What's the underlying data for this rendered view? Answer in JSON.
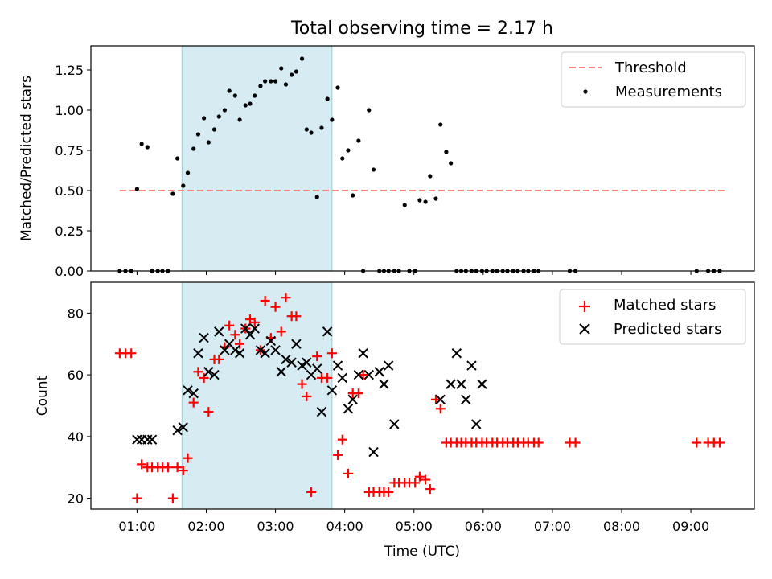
{
  "chart_data": [
    {
      "type": "scatter",
      "title": "Total observing time = 2.17 h",
      "xlabel": "",
      "ylabel": "Matched/Predicted stars",
      "ylim": [
        0,
        1.4
      ],
      "yticks": [
        "0.00",
        "0.25",
        "0.50",
        "0.75",
        "1.00",
        "1.25"
      ],
      "xlim": [
        "00:20",
        "09:55"
      ],
      "legend_position": "top-right",
      "highlight_span": {
        "x": [
          "01:39",
          "03:49"
        ],
        "color": "#add8e6"
      },
      "threshold": {
        "name": "Threshold",
        "value": 0.5,
        "x": [
          "00:45",
          "09:30"
        ],
        "color": "#ff7f7f",
        "style": "dashed"
      },
      "series": [
        {
          "name": "Measurements",
          "color": "#000000",
          "marker": "dot",
          "x": [
            "00:45",
            "00:50",
            "00:55",
            "01:00",
            "01:04",
            "01:09",
            "01:13",
            "01:18",
            "01:22",
            "01:27",
            "01:31",
            "01:35",
            "01:40",
            "01:44",
            "01:49",
            "01:53",
            "01:58",
            "02:02",
            "02:07",
            "02:11",
            "02:16",
            "02:20",
            "02:25",
            "02:29",
            "02:34",
            "02:38",
            "02:42",
            "02:47",
            "02:51",
            "02:56",
            "03:00",
            "03:05",
            "03:09",
            "03:14",
            "03:18",
            "03:23",
            "03:27",
            "03:31",
            "03:36",
            "03:40",
            "03:45",
            "03:49",
            "03:54",
            "03:58",
            "04:03",
            "04:07",
            "04:12",
            "04:16",
            "04:21",
            "04:25",
            "04:30",
            "04:34",
            "04:38",
            "04:43",
            "04:47",
            "04:52",
            "04:56",
            "05:01",
            "05:05",
            "05:10",
            "05:14",
            "05:19",
            "05:23",
            "05:28",
            "05:32",
            "05:37",
            "05:41",
            "05:45",
            "05:50",
            "05:54",
            "05:59",
            "06:03",
            "06:08",
            "06:12",
            "06:17",
            "06:21",
            "06:26",
            "06:30",
            "06:35",
            "06:39",
            "06:44",
            "06:48",
            "07:15",
            "07:20",
            "09:05",
            "09:15",
            "09:20",
            "09:25"
          ],
          "values": [
            0,
            0,
            0,
            0.51,
            0.79,
            0.77,
            0,
            0,
            0,
            0,
            0.48,
            0.7,
            0.53,
            0.61,
            0.76,
            0.85,
            0.95,
            0.8,
            0.88,
            0.96,
            1.0,
            1.12,
            1.09,
            0.94,
            1.03,
            1.04,
            1.09,
            1.15,
            1.18,
            1.18,
            1.18,
            1.26,
            1.16,
            1.22,
            1.24,
            1.32,
            0.88,
            0.86,
            0.46,
            0.89,
            1.07,
            0.94,
            1.14,
            0.7,
            0.75,
            0.47,
            0.81,
            0,
            1.0,
            0.63,
            0,
            0,
            0,
            0,
            0,
            0.41,
            0,
            0,
            0.44,
            0.43,
            0.59,
            0.45,
            0.91,
            0.74,
            0.67,
            0,
            0,
            0,
            0,
            0,
            0,
            0,
            0,
            0,
            0,
            0,
            0,
            0,
            0,
            0,
            0,
            0,
            0,
            0,
            0,
            0,
            0,
            0
          ]
        }
      ]
    },
    {
      "type": "scatter",
      "title": "",
      "xlabel": "Time (UTC)",
      "ylabel": "Count",
      "ylim": [
        16.5,
        90
      ],
      "yticks": [
        "20",
        "40",
        "60",
        "80"
      ],
      "xlim": [
        "00:20",
        "09:55"
      ],
      "xticks": [
        "01:00",
        "02:00",
        "03:00",
        "04:00",
        "05:00",
        "06:00",
        "07:00",
        "08:00",
        "09:00"
      ],
      "legend_position": "top-right",
      "highlight_span": {
        "x": [
          "01:39",
          "03:49"
        ],
        "color": "#add8e6"
      },
      "series": [
        {
          "name": "Matched stars",
          "color": "#ff0000",
          "marker": "plus",
          "x": [
            "00:45",
            "00:50",
            "00:55",
            "01:00",
            "01:04",
            "01:09",
            "01:13",
            "01:18",
            "01:22",
            "01:27",
            "01:31",
            "01:35",
            "01:40",
            "01:44",
            "01:49",
            "01:53",
            "01:58",
            "02:02",
            "02:07",
            "02:11",
            "02:16",
            "02:20",
            "02:25",
            "02:29",
            "02:34",
            "02:38",
            "02:42",
            "02:47",
            "02:51",
            "02:56",
            "03:00",
            "03:05",
            "03:09",
            "03:14",
            "03:18",
            "03:23",
            "03:27",
            "03:31",
            "03:36",
            "03:40",
            "03:45",
            "03:49",
            "03:54",
            "03:58",
            "04:03",
            "04:07",
            "04:12",
            "04:16",
            "04:21",
            "04:25",
            "04:30",
            "04:34",
            "04:38",
            "04:43",
            "04:47",
            "04:52",
            "04:56",
            "05:01",
            "05:05",
            "05:10",
            "05:14",
            "05:19",
            "05:23",
            "05:28",
            "05:32",
            "05:37",
            "05:41",
            "05:45",
            "05:50",
            "05:54",
            "05:59",
            "06:03",
            "06:08",
            "06:12",
            "06:17",
            "06:21",
            "06:26",
            "06:30",
            "06:35",
            "06:39",
            "06:44",
            "06:48",
            "07:15",
            "07:20",
            "09:05",
            "09:15",
            "09:20",
            "09:25"
          ],
          "values": [
            67,
            67,
            67,
            20,
            31,
            30,
            30,
            30,
            30,
            30,
            20,
            30,
            29,
            33,
            51,
            61,
            59,
            48,
            65,
            65,
            69,
            76,
            73,
            70,
            75,
            78,
            77,
            68,
            84,
            72,
            82,
            74,
            85,
            79,
            79,
            57,
            53,
            22,
            66,
            59,
            59,
            67,
            34,
            39,
            28,
            54,
            54,
            60,
            22,
            22,
            22,
            22,
            22,
            25,
            25,
            25,
            25,
            25,
            27,
            26,
            23,
            52,
            49,
            38,
            38,
            38,
            38,
            38,
            38,
            38,
            38,
            38,
            38,
            38,
            38,
            38,
            38,
            38,
            38,
            38,
            38,
            38,
            38,
            38,
            38,
            38,
            38,
            38
          ]
        },
        {
          "name": "Predicted stars",
          "color": "#000000",
          "marker": "x",
          "x": [
            "01:00",
            "01:04",
            "01:09",
            "01:13",
            "01:35",
            "01:40",
            "01:44",
            "01:49",
            "01:53",
            "01:58",
            "02:02",
            "02:07",
            "02:11",
            "02:16",
            "02:20",
            "02:25",
            "02:29",
            "02:34",
            "02:38",
            "02:42",
            "02:47",
            "02:51",
            "02:56",
            "03:00",
            "03:05",
            "03:09",
            "03:14",
            "03:18",
            "03:23",
            "03:27",
            "03:31",
            "03:36",
            "03:40",
            "03:45",
            "03:49",
            "03:54",
            "03:58",
            "04:03",
            "04:07",
            "04:12",
            "04:16",
            "04:21",
            "04:25",
            "04:30",
            "04:34",
            "04:38",
            "04:43",
            "05:23",
            "05:32",
            "05:37",
            "05:41",
            "05:45",
            "05:50",
            "05:54",
            "05:59"
          ],
          "values": [
            39,
            39,
            39,
            39,
            42,
            43,
            55,
            54,
            67,
            72,
            61,
            60,
            74,
            68,
            70,
            68,
            67,
            75,
            73,
            75,
            68,
            67,
            71,
            68,
            61,
            65,
            64,
            70,
            63,
            64,
            60,
            62,
            48,
            74,
            55,
            63,
            59,
            49,
            52,
            60,
            67,
            60,
            35,
            61,
            57,
            63,
            44,
            52,
            57,
            67,
            57,
            52,
            63,
            44,
            57
          ]
        }
      ]
    }
  ]
}
